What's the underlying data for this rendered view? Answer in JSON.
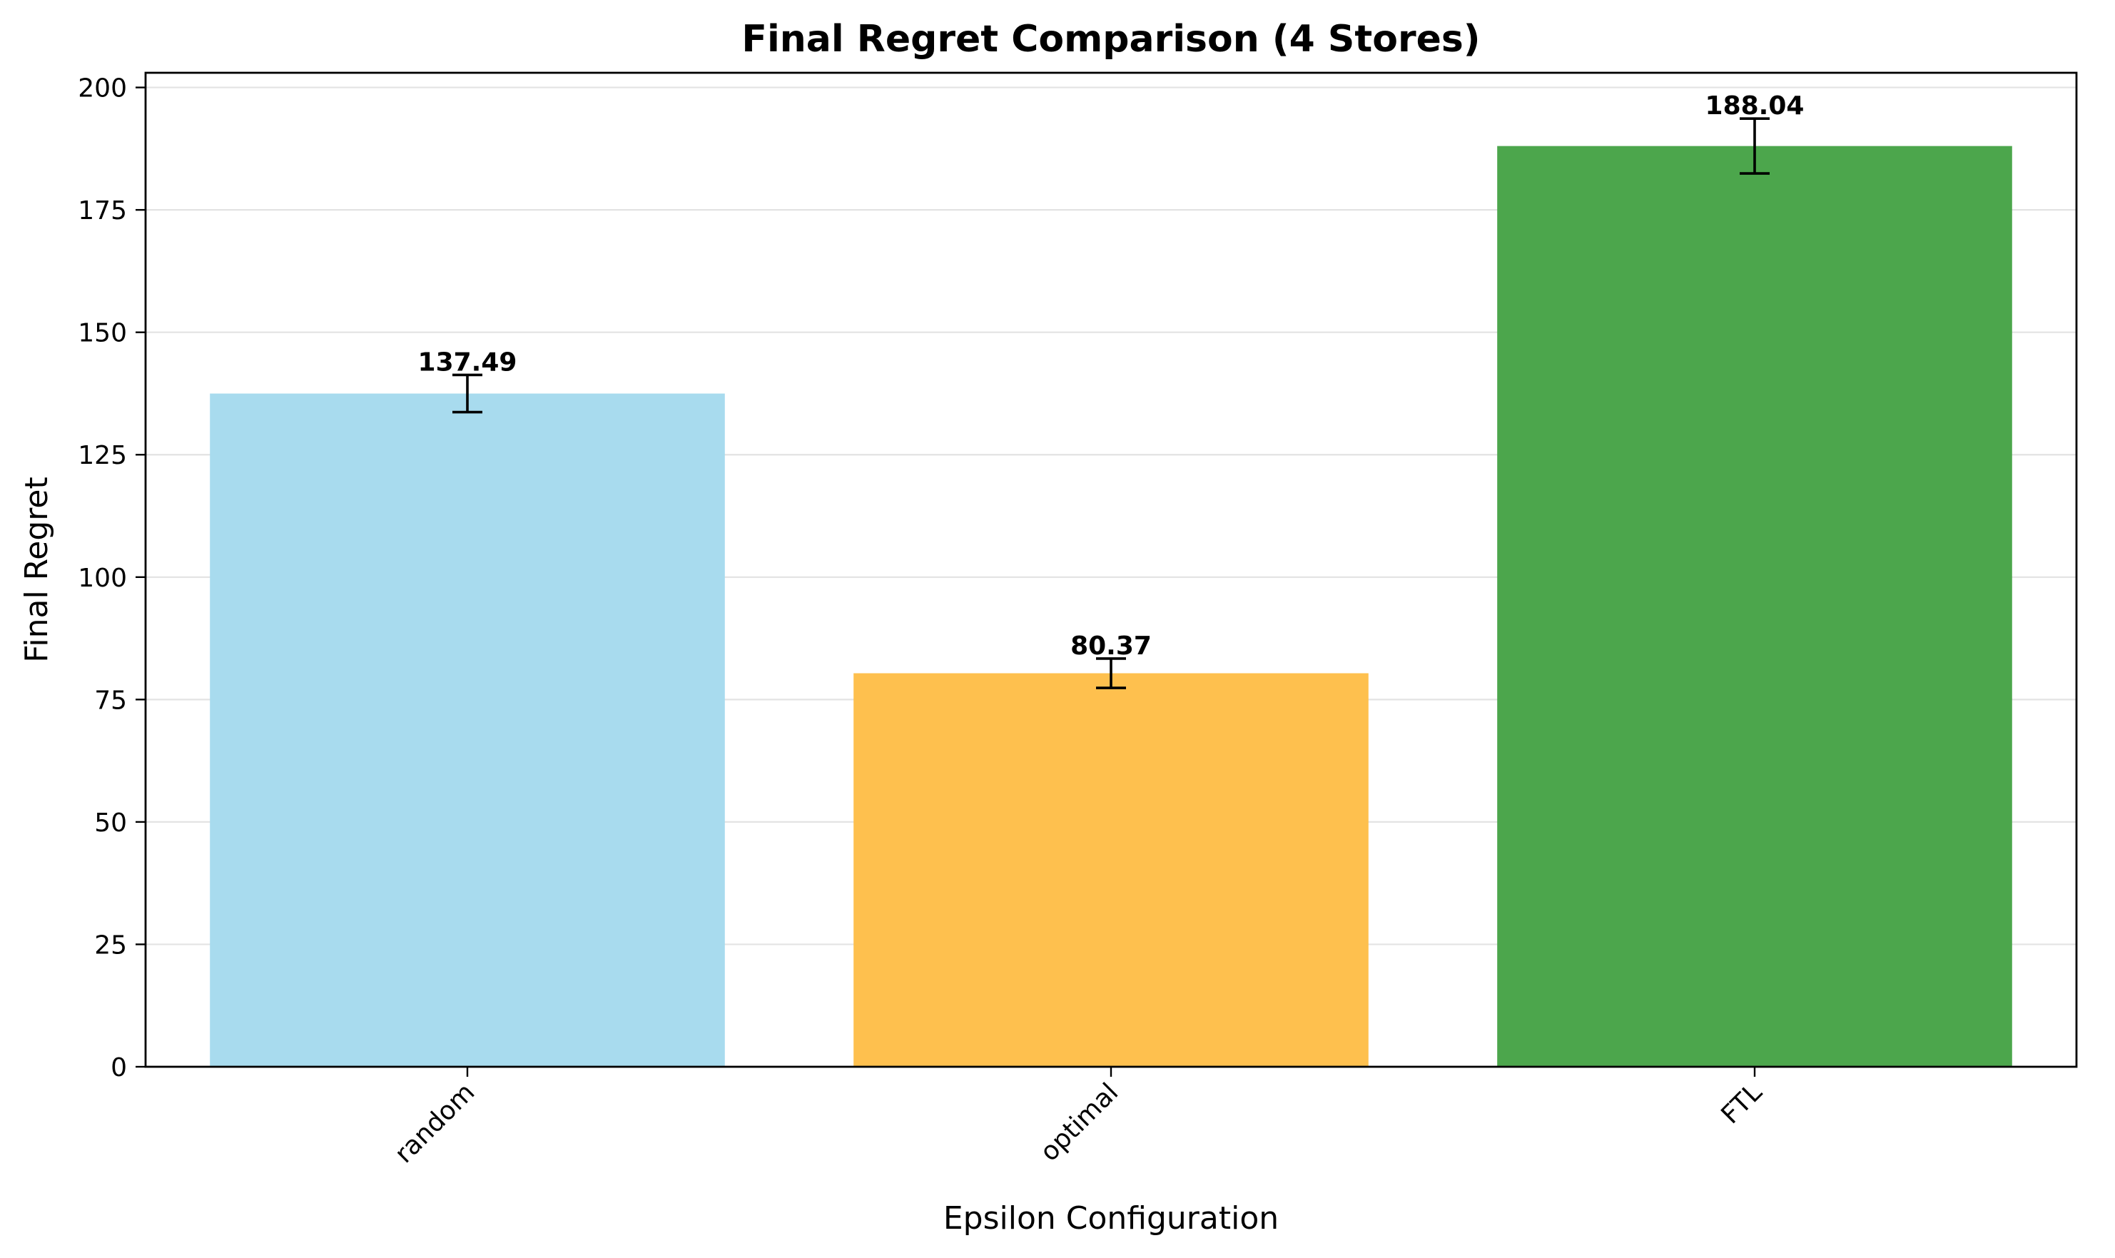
{
  "chart_data": {
    "type": "bar",
    "title": "Final Regret Comparison (4 Stores)",
    "xlabel": "Epsilon Configuration",
    "ylabel": "Final Regret",
    "categories": [
      "random",
      "optimal",
      "FTL"
    ],
    "values": [
      137.49,
      80.37,
      188.04
    ],
    "value_labels": [
      "137.49",
      "80.37",
      "188.04"
    ],
    "errors": [
      3.8,
      3.0,
      5.6
    ],
    "bar_colors": [
      "#a8dbee",
      "#fec04e",
      "#4ca64c"
    ],
    "ylim": [
      0,
      203
    ],
    "yticks": [
      0,
      25,
      50,
      75,
      100,
      125,
      150,
      175,
      200
    ],
    "xtick_rotation": 45,
    "grid": "y",
    "legend": "none"
  }
}
